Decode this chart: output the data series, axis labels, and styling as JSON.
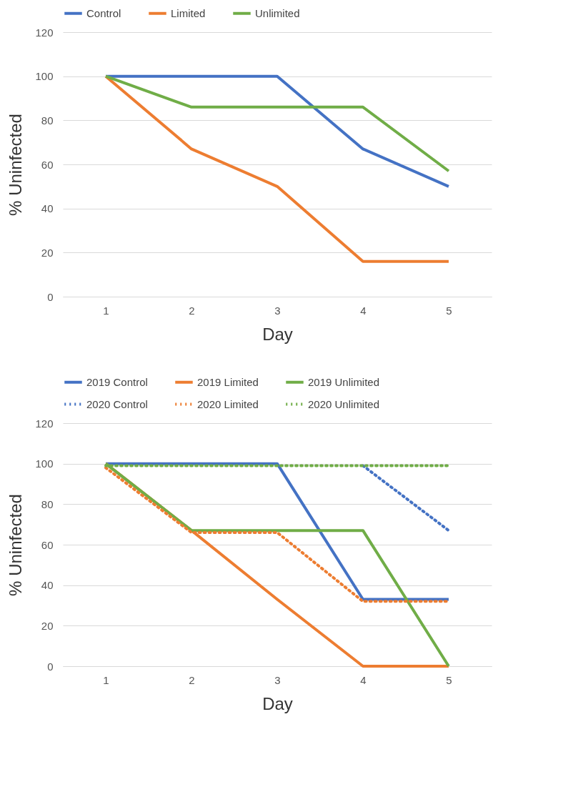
{
  "chart_data": [
    {
      "type": "line",
      "xlabel": "Day",
      "ylabel": "% Uninfected",
      "categories": [
        "1",
        "2",
        "3",
        "4",
        "5"
      ],
      "ylim": [
        0,
        120
      ],
      "yticks": [
        0,
        20,
        40,
        60,
        80,
        100,
        120
      ],
      "grid": "y",
      "legend": "top",
      "marker": "none",
      "series": [
        {
          "name": "Control",
          "color": "#4472c4",
          "line_style": "solid",
          "values": [
            100,
            100,
            100,
            67,
            50
          ]
        },
        {
          "name": "Limited",
          "color": "#ed7d31",
          "line_style": "solid",
          "values": [
            100,
            67,
            50,
            16,
            16
          ]
        },
        {
          "name": "Unlimited",
          "color": "#70ad47",
          "line_style": "solid",
          "values": [
            100,
            86,
            86,
            86,
            57
          ]
        }
      ]
    },
    {
      "type": "line",
      "xlabel": "Day",
      "ylabel": "% Uninfected",
      "categories": [
        "1",
        "2",
        "3",
        "4",
        "5"
      ],
      "ylim": [
        0,
        120
      ],
      "yticks": [
        0,
        20,
        40,
        60,
        80,
        100,
        120
      ],
      "grid": "y",
      "legend": "top",
      "marker": "none",
      "series": [
        {
          "name": "2019 Control",
          "color": "#4472c4",
          "line_style": "solid",
          "values": [
            100,
            100,
            100,
            33,
            33
          ]
        },
        {
          "name": "2019 Limited",
          "color": "#ed7d31",
          "line_style": "solid",
          "values": [
            100,
            67,
            33,
            0,
            0
          ]
        },
        {
          "name": "2019 Unlimited",
          "color": "#70ad47",
          "line_style": "solid",
          "values": [
            100,
            67,
            67,
            67,
            0
          ]
        },
        {
          "name": "2020 Control",
          "color": "#4472c4",
          "line_style": "dotted",
          "values": [
            null,
            null,
            null,
            99,
            67
          ]
        },
        {
          "name": "2020 Limited",
          "color": "#ed7d31",
          "line_style": "dotted",
          "values": [
            98,
            66,
            66,
            32,
            32
          ]
        },
        {
          "name": "2020 Unlimited",
          "color": "#70ad47",
          "line_style": "dotted",
          "values": [
            99,
            99,
            99,
            99,
            99
          ]
        }
      ]
    }
  ]
}
